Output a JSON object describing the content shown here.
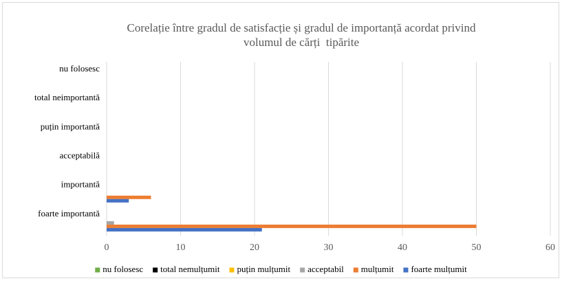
{
  "chart_data": {
    "type": "bar",
    "orientation": "horizontal",
    "title": [
      "Corelație între gradul de satisfacție și gradul de importanță acordat privind",
      "volumul de cărți  tipărite"
    ],
    "categories": [
      "foarte importantă",
      "importantă",
      "acceptabilă",
      "puțin importantă",
      "total neimportantă",
      "nu folosesc"
    ],
    "series": [
      {
        "name": "nu folosesc",
        "color": "#70ad47",
        "values": [
          0,
          0,
          0,
          0,
          0,
          0
        ]
      },
      {
        "name": "total nemulțumit",
        "color": "#000000",
        "values": [
          0,
          0,
          0,
          0,
          0,
          0
        ]
      },
      {
        "name": "puțin mulțumit",
        "color": "#ffc000",
        "values": [
          0,
          0,
          0,
          0,
          0,
          0
        ]
      },
      {
        "name": "acceptabil",
        "color": "#a5a5a5",
        "values": [
          1,
          0,
          0,
          0,
          0,
          0
        ]
      },
      {
        "name": "mulțumit",
        "color": "#ed7d31",
        "values": [
          50,
          6,
          0,
          0,
          0,
          0
        ]
      },
      {
        "name": "foarte mulțumit",
        "color": "#4472c4",
        "values": [
          21,
          3,
          0,
          0,
          0,
          0
        ]
      }
    ],
    "xlim": [
      0,
      60
    ],
    "xticks": [
      0,
      10,
      20,
      30,
      40,
      50,
      60
    ],
    "grid": true,
    "legend": "bottom"
  }
}
